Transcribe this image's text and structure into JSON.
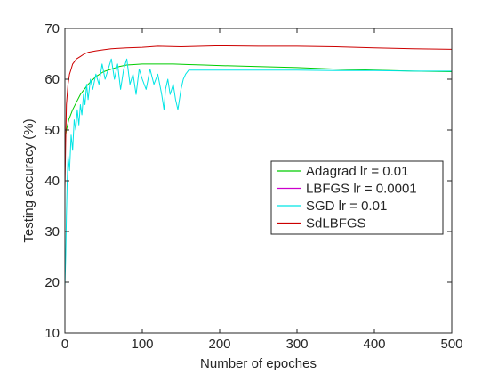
{
  "chart_data": {
    "type": "line",
    "title": "",
    "xlabel": "Number of epoches",
    "ylabel": "Testing accuracy (%)",
    "xlim": [
      0,
      500
    ],
    "ylim": [
      10,
      70
    ],
    "xticks": [
      0,
      100,
      200,
      300,
      400,
      500
    ],
    "yticks": [
      10,
      20,
      30,
      40,
      50,
      60,
      70
    ],
    "grid": false,
    "box": true,
    "legend_position": "right",
    "series": [
      {
        "name": "Adagrad lr = 0.01",
        "color": "#00cc00",
        "x": [
          0,
          2,
          5,
          10,
          15,
          20,
          30,
          40,
          50,
          60,
          70,
          80,
          100,
          120,
          140,
          160,
          180,
          200,
          250,
          300,
          350,
          400,
          450,
          500
        ],
        "y": [
          48,
          50,
          52,
          54,
          55.5,
          57,
          59,
          60.5,
          61.5,
          62,
          62.5,
          62.8,
          63,
          63,
          63,
          62.9,
          62.8,
          62.7,
          62.5,
          62.3,
          62,
          61.8,
          61.6,
          61.5
        ]
      },
      {
        "name": "LBFGS lr = 0.0001",
        "color": "#cc00cc",
        "x": [
          0,
          100,
          200,
          300,
          400,
          500
        ],
        "y": [
          10,
          10,
          10,
          10,
          10,
          10
        ]
      },
      {
        "name": "SGD lr = 0.01",
        "color": "#00e5e5",
        "x": [
          0,
          1,
          2,
          3,
          4,
          6,
          8,
          10,
          12,
          14,
          16,
          18,
          20,
          22,
          24,
          26,
          28,
          30,
          33,
          36,
          40,
          44,
          48,
          52,
          56,
          60,
          64,
          68,
          72,
          76,
          80,
          84,
          88,
          92,
          96,
          100,
          105,
          110,
          115,
          120,
          125,
          128,
          130,
          133,
          136,
          140,
          143,
          146,
          150,
          153,
          156,
          160,
          200,
          250,
          300,
          350,
          400,
          450,
          500
        ],
        "y": [
          19,
          25,
          33,
          40,
          45,
          42,
          49,
          46,
          52,
          50,
          54,
          51,
          55,
          53,
          57,
          55,
          59,
          56,
          60,
          58,
          61,
          59,
          63,
          60,
          62,
          64,
          60,
          63,
          58,
          62,
          64,
          59,
          61,
          57,
          62,
          60,
          58,
          62,
          59,
          61,
          57,
          54,
          58,
          60,
          57,
          59,
          56,
          54,
          58,
          60,
          61,
          61.8,
          61.8,
          61.8,
          61.8,
          61.7,
          61.7,
          61.6,
          61.6
        ]
      },
      {
        "name": "SdLBFGS",
        "color": "#cc0000",
        "x": [
          0,
          1,
          2,
          4,
          6,
          8,
          10,
          15,
          20,
          25,
          30,
          40,
          50,
          60,
          80,
          100,
          120,
          150,
          200,
          250,
          300,
          350,
          400,
          450,
          500
        ],
        "y": [
          38,
          48,
          55,
          59,
          61,
          62,
          63,
          64,
          64.5,
          65,
          65.3,
          65.6,
          65.8,
          66,
          66.2,
          66.3,
          66.5,
          66.4,
          66.6,
          66.5,
          66.5,
          66.4,
          66.2,
          66,
          65.9
        ]
      }
    ]
  }
}
